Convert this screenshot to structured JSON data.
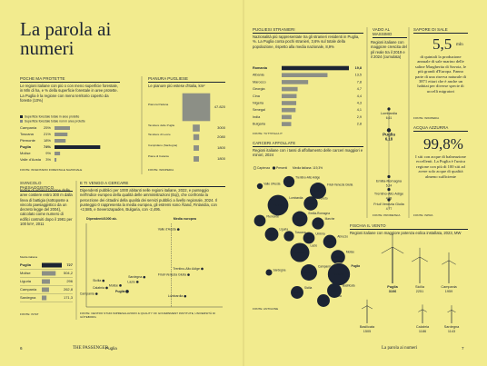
{
  "title": "La parola ai numeri",
  "forest": {
    "heading": "POCHE MA PROTETTE",
    "text": "Le regioni italiane con più o con meno superficie forestale, in Mln di ha, e % della superficie forestale in aree protette. La Puglia è la regione con meno territorio coperto da foreste (10%)",
    "legend": [
      "Superficie forestale totale in aree protette",
      "Superficie forestale totale non in aree protette"
    ],
    "rows": [
      {
        "name": "Campania",
        "value": 25,
        "label": "25%"
      },
      {
        "name": "Toscana",
        "value": 21,
        "label": "21%"
      },
      {
        "name": "Piemonte",
        "value": 18,
        "label": "18%"
      },
      {
        "name": "Puglia",
        "value": 74,
        "label": "74%"
      },
      {
        "name": "Molise",
        "value": 9,
        "label": "9%"
      },
      {
        "name": "Valle d'Aosta",
        "value": 3,
        "label": "3%"
      }
    ],
    "source": "FONTE: INVENTARIO FORESTALE NAZIONALE"
  },
  "pianura": {
    "heading": "PIANURA PUGLIESE",
    "text": "Le pianure più estese d'Italia, km²",
    "rows": [
      {
        "name": "Pianura Padana",
        "value": 47820,
        "label": "47.820"
      },
      {
        "name": "Tavoliere delle Puglie",
        "value": 3000,
        "label": "3000"
      },
      {
        "name": "Tavoliere di Lecce",
        "value": 2080,
        "label": "2080"
      },
      {
        "name": "Campidano (Sardegna)",
        "value": 1800,
        "label": "1800"
      },
      {
        "name": "Piana di Catania",
        "value": 1800,
        "label": "1800"
      }
    ],
    "source": "FONTE: WIKIPEDIA"
  },
  "svincolo": {
    "heading": "SVINCOLO PAESAGGISTICO",
    "text": "Indice di urbanizzazione delle aree costiere entro 300 m dalla linea di battigia (sottoposte a vincolo paesaggistico da un decreto legge del 2004), calcolato come numero di edifici costruiti dopo il 1981 per 100 km², 2011",
    "media": "Media italiana",
    "rows": [
      {
        "name": "Puglia",
        "value": 727,
        "label": "727"
      },
      {
        "name": "Molise",
        "value": 504.2,
        "label": "504,2"
      },
      {
        "name": "Liguria",
        "value": 296,
        "label": "296"
      },
      {
        "name": "Campania",
        "value": 262.8,
        "label": "262,8"
      },
      {
        "name": "Sardegna",
        "value": 171.3,
        "label": "171,3"
      }
    ],
    "source": "FONTE: ISTAT"
  },
  "vengo": {
    "heading": "E TI VENGO A CERCARE",
    "text": "Dipendenti pubblici per 1000 abitanti nelle regioni italiane, 2022, e punteggio nell'Indice europeo della qualità delle amministrazioni (Eqi), che confronta la percezione dei cittadini della qualità dei servizi pubblici a livello regionale, 2024. Il punteggio 0 rappresenta la media europea, gli estremi sono Åland, Finlandia, con +2,585, e Severozapaden, Bulgaria, con -2,495.",
    "y_label": "Dipendenti/1000 ab.",
    "x_label": "Media europea",
    "xlim": [
      -2.5,
      1.5
    ],
    "ylim": [
      40,
      110
    ],
    "points": [
      {
        "name": "Valle d'Aosta",
        "x": 0.2,
        "y": 105
      },
      {
        "name": "Trentino-Alto Adige",
        "x": 0.9,
        "y": 72
      },
      {
        "name": "Friuli-Venezia Giulia",
        "x": 0.5,
        "y": 67
      },
      {
        "name": "Sardegna",
        "x": -0.8,
        "y": 65
      },
      {
        "name": "Lazio",
        "x": -1.0,
        "y": 61
      },
      {
        "name": "Sicilia",
        "x": -2.0,
        "y": 62
      },
      {
        "name": "Molise",
        "x": -1.5,
        "y": 58
      },
      {
        "name": "Calabria",
        "x": -1.9,
        "y": 56
      },
      {
        "name": "Puglia",
        "x": -1.3,
        "y": 53
      },
      {
        "name": "Campania",
        "x": -2.2,
        "y": 51
      },
      {
        "name": "Lombardia",
        "x": 0.4,
        "y": 49
      }
    ],
    "source": "FONTE: CENTRO STUDI IMPRESALAVORO & QUALITY OF GOVERNMENT INSTITUTE, UNIVERSITÀ DI GÖTEBORG"
  },
  "stranieri": {
    "heading": "PUGLIESI STRANIERI",
    "text": "Nazionalità più rappresentate tra gli stranieri residenti in Puglia, %. La Puglia conta pochi stranieri, 3,6% sul totale della popolazione, rispetto alla media nazionale, 8,9%",
    "rows": [
      {
        "name": "Romania",
        "value": 19.8,
        "label": "19,8"
      },
      {
        "name": "Albania",
        "value": 13.5,
        "label": "13,5"
      },
      {
        "name": "Marocco",
        "value": 7.8,
        "label": "7,8"
      },
      {
        "name": "Georgia",
        "value": 4.7,
        "label": "4,7"
      },
      {
        "name": "Cina",
        "value": 4.4,
        "label": "4,4"
      },
      {
        "name": "Nigeria",
        "value": 4.3,
        "label": "4,3"
      },
      {
        "name": "Senegal",
        "value": 4.1,
        "label": "4,1"
      },
      {
        "name": "India",
        "value": 2.9,
        "label": "2,9"
      },
      {
        "name": "Bulgaria",
        "value": 2.8,
        "label": "2,8"
      }
    ],
    "source": "FONTE: TUTTITALIA.IT"
  },
  "carceri": {
    "heading": "CARCERI AFFOLLATE",
    "text": "Regioni italiane con i tassi di affollamento delle carceri maggiori e minori, 2024",
    "legend": [
      "Capienza",
      "Presenti",
      "Media italiana: 119,3%"
    ],
    "regions": [
      {
        "name": "Valle d'Aosta",
        "value": 80,
        "label": "80%"
      },
      {
        "name": "Trentino-Alto Adige",
        "value": 111,
        "label": "111%"
      },
      {
        "name": "Friuli-Venezia Giulia",
        "value": 134,
        "label": "134%"
      },
      {
        "name": "Lombardia",
        "value": 151,
        "label": "151%"
      },
      {
        "name": "Veneto",
        "value": 124,
        "label": "124%"
      },
      {
        "name": "Piemonte",
        "value": 113,
        "label": "113%"
      },
      {
        "name": "Emilia-Romagna",
        "value": 130,
        "label": "130%"
      },
      {
        "name": "Liguria",
        "value": 122,
        "label": "122%"
      },
      {
        "name": "Toscana",
        "value": 106,
        "label": "106%"
      },
      {
        "name": "Marche",
        "value": 115,
        "label": "115%"
      },
      {
        "name": "Umbria",
        "value": 113,
        "label": "113%"
      },
      {
        "name": "Lazio",
        "value": 145,
        "label": "145%"
      },
      {
        "name": "Abruzzo",
        "value": 121,
        "label": "121%"
      },
      {
        "name": "Campania",
        "value": 134,
        "label": "134%"
      },
      {
        "name": "Molise",
        "value": 125,
        "label": "125%"
      },
      {
        "name": "Puglia",
        "value": 158,
        "label": "158%"
      },
      {
        "name": "Basilicata",
        "value": 126,
        "label": "126%"
      },
      {
        "name": "Sardegna",
        "value": 84,
        "label": "84%"
      },
      {
        "name": "Sicilia",
        "value": 118,
        "label": "118%"
      },
      {
        "name": "Calabria",
        "value": 118,
        "label": "118%"
      }
    ],
    "source": "FONTE: ANTIGONE"
  },
  "vado": {
    "heading": "VADO AL MASSIMO",
    "text": "Regioni italiane con maggiore crescita del pil reale tra il 2019 e il 2024 (cumulata)",
    "rows": [
      {
        "name": "Lombardia",
        "value": 6.61,
        "label": "6,61"
      },
      {
        "name": "Puglia",
        "value": 6.18,
        "label": "6,18"
      },
      {
        "name": "Emilia-Romagna",
        "value": 5.24,
        "label": "5,24"
      },
      {
        "name": "Trentino-Alto Adige",
        "value": 4.98,
        "label": "4,98"
      },
      {
        "name": "Friuli Venezia Giulia",
        "value": 4.77,
        "label": "4,77"
      }
    ],
    "source": "FONTE: PROMETEIA"
  },
  "sale": {
    "heading": "SAPORE DI SALE",
    "value": "5,5",
    "unit": "mln",
    "text": "di quintali la produzione annuale di sale marino delle saline Margherita di Savoia, le più grandi d'Europa. Fanno parte di una riserva naturale di 3871 ettari che è anche un habitat per diverse specie di uccelli migratori",
    "source": "FONTE: WIKIPEDIA"
  },
  "acqua": {
    "heading": "ACQUA AZZURRA",
    "value": "99,8%",
    "text": "I siti con acque di balneazione eccellenti. La Puglia è l'unica regione con più di 100 siti ad avere solo acque di qualità almeno sufficiente",
    "source": "FONTE: ISPRA"
  },
  "vento": {
    "heading": "FISCHIA IL VENTO",
    "text": "Regioni italiane con maggiore potenza eolica installata, 2023, MW",
    "rows": [
      {
        "name": "Puglia",
        "value": 3106,
        "label": "3106"
      },
      {
        "name": "Sicilia",
        "value": 2251,
        "label": "2251"
      },
      {
        "name": "Campania",
        "value": 1959,
        "label": "1959"
      },
      {
        "name": "Basilicata",
        "value": 1505,
        "label": "1505"
      },
      {
        "name": "Calabria",
        "value": 1186,
        "label": "1186"
      },
      {
        "name": "Sardegna",
        "value": 1143,
        "label": "1143"
      }
    ]
  },
  "footer": {
    "page_left": "6",
    "magazine": "THE PASSENGER",
    "region": "Puglia",
    "section": "La parola ai numeri",
    "page_right": "7"
  }
}
